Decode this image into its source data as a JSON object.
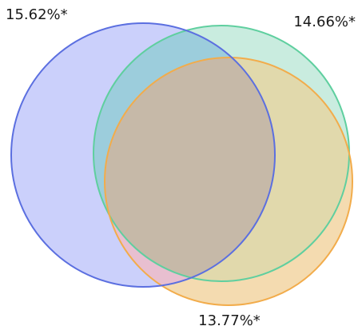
{
  "venn": {
    "sets": [
      {
        "label": "15.62%*",
        "fill": "#cbd0fb",
        "stroke": "#5b6fe0"
      },
      {
        "label": "14.66%*",
        "fill": "#c9ecdf",
        "stroke": "#5fcf9f"
      },
      {
        "label": "13.77%*",
        "fill": "#f4dbb0",
        "stroke": "#f2ac4b"
      }
    ],
    "overlap_colors": {
      "blue_green": "#9ccddc",
      "green_orange": "#e1d9ac",
      "blue_orange": "#e8bfd0",
      "all_three": "#c6b9a8"
    }
  }
}
